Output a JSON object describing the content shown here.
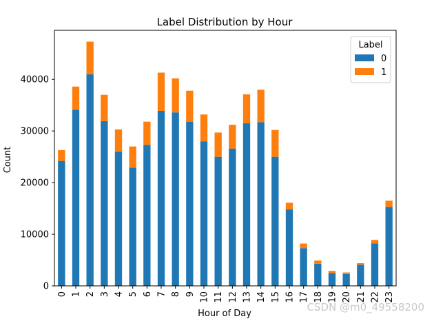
{
  "watermark": "CSDN @m0_49558200",
  "chart_data": {
    "type": "bar",
    "stacked": true,
    "title": "Label Distribution by Hour",
    "xlabel": "Hour of Day",
    "ylabel": "Count",
    "categories": [
      "0",
      "1",
      "2",
      "3",
      "4",
      "5",
      "6",
      "7",
      "8",
      "9",
      "10",
      "11",
      "12",
      "13",
      "14",
      "15",
      "16",
      "17",
      "18",
      "19",
      "20",
      "21",
      "22",
      "23"
    ],
    "ylim": [
      0,
      49500
    ],
    "yticks": [
      0,
      10000,
      20000,
      30000,
      40000
    ],
    "grid": false,
    "legend": {
      "title": "Label",
      "position": "top-right"
    },
    "series": [
      {
        "name": "0",
        "color": "#1f77b4",
        "values": [
          24200,
          34100,
          41000,
          31900,
          26000,
          22900,
          27300,
          33900,
          33600,
          31800,
          28000,
          25000,
          26600,
          31500,
          31700,
          25000,
          14800,
          7300,
          4300,
          2500,
          2300,
          4100,
          8200,
          15300
        ]
      },
      {
        "name": "1",
        "color": "#ff7f0e",
        "values": [
          2100,
          4500,
          6300,
          5100,
          4300,
          4100,
          4500,
          7400,
          6600,
          6000,
          5200,
          4700,
          4600,
          5600,
          6300,
          5200,
          1300,
          900,
          600,
          400,
          300,
          300,
          700,
          1200
        ]
      }
    ]
  }
}
